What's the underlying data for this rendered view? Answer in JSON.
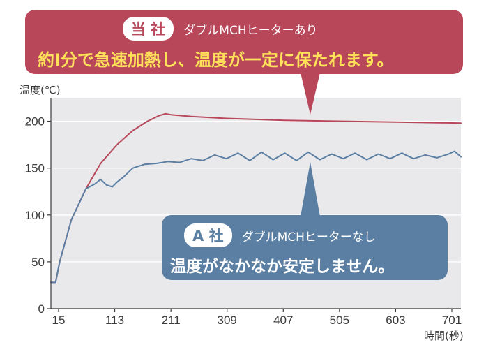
{
  "theme": {
    "plot_bg": "#e9e9ec",
    "gridline": "#ffffff",
    "our_color": "#b8475a",
    "competitor_color": "#5a7fa3",
    "our_headline_color": "#ffe15a",
    "text_dark": "#3a3a3a"
  },
  "callouts": {
    "ours": {
      "company": "当 社",
      "desc": "ダブルMCHヒーターあり",
      "headline": "約Ⅰ分で急速加熱し、温度が一定に保たれます。"
    },
    "competitor": {
      "company": "A 社",
      "desc": "ダブルMCHヒーターなし",
      "headline": "温度がなかなか安定しません。"
    }
  },
  "chart_data": {
    "type": "line",
    "ylabel": "温度(℃)",
    "xlabel": "時間(秒)",
    "x_tick_labels": [
      "15",
      "113",
      "211",
      "309",
      "407",
      "505",
      "603",
      "701"
    ],
    "y_ticks": [
      0,
      50,
      100,
      150,
      200
    ],
    "xlim": [
      0,
      701
    ],
    "ylim": [
      0,
      225
    ],
    "grid": "horizontal",
    "series": [
      {
        "name": "当 社",
        "color": "#b8475a",
        "x": [
          0,
          8,
          15,
          35,
          60,
          85,
          113,
          140,
          165,
          185,
          196,
          205,
          240,
          300,
          400,
          500,
          600,
          701
        ],
        "y": [
          28,
          28,
          50,
          95,
          128,
          155,
          175,
          190,
          200,
          206,
          208,
          207,
          205,
          203,
          201,
          200,
          199,
          198
        ]
      },
      {
        "name": "A 社",
        "color": "#5a7fa3",
        "x": [
          0,
          8,
          15,
          35,
          60,
          75,
          85,
          95,
          105,
          113,
          125,
          140,
          160,
          180,
          200,
          220,
          240,
          260,
          280,
          300,
          320,
          340,
          360,
          380,
          400,
          420,
          440,
          460,
          480,
          500,
          520,
          540,
          560,
          580,
          600,
          620,
          640,
          660,
          680,
          690,
          701
        ],
        "y": [
          28,
          28,
          50,
          95,
          128,
          133,
          138,
          132,
          130,
          135,
          141,
          150,
          154,
          155,
          157,
          156,
          160,
          158,
          164,
          160,
          166,
          158,
          167,
          159,
          166,
          158,
          167,
          159,
          165,
          160,
          166,
          159,
          165,
          160,
          166,
          160,
          164,
          161,
          165,
          168,
          162
        ]
      }
    ]
  }
}
